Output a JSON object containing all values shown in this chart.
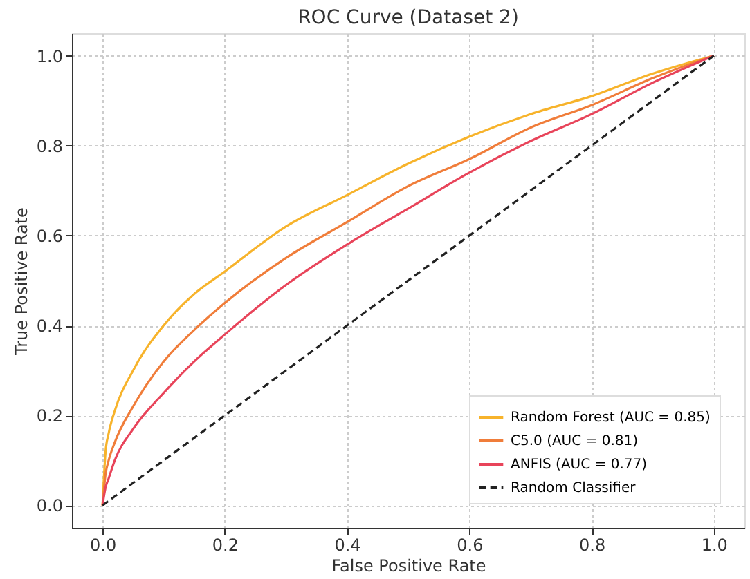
{
  "chart_data": {
    "type": "line",
    "title": "ROC Curve (Dataset 2)",
    "xlabel": "False Positive Rate",
    "ylabel": "True Positive Rate",
    "x": [
      0,
      0.005,
      0.01,
      0.02,
      0.05,
      0.1,
      0.15,
      0.2,
      0.3,
      0.4,
      0.5,
      0.6,
      0.7,
      0.8,
      0.9,
      1
    ],
    "series": [
      {
        "name": "Random Forest (AUC = 0.85)",
        "color": "#f7b32b",
        "line_style": "solid",
        "values": [
          0,
          0.12,
          0.16,
          0.21,
          0.3,
          0.4,
          0.47,
          0.52,
          0.62,
          0.69,
          0.76,
          0.82,
          0.87,
          0.91,
          0.96,
          1
        ]
      },
      {
        "name": "C5.0 (AUC = 0.81)",
        "color": "#f07d3a",
        "line_style": "solid",
        "values": [
          0,
          0.07,
          0.1,
          0.14,
          0.22,
          0.32,
          0.39,
          0.45,
          0.55,
          0.63,
          0.71,
          0.77,
          0.84,
          0.89,
          0.95,
          1
        ]
      },
      {
        "name": "ANFIS (AUC = 0.77)",
        "color": "#e8445a",
        "line_style": "solid",
        "values": [
          0,
          0.04,
          0.06,
          0.1,
          0.17,
          0.25,
          0.32,
          0.38,
          0.49,
          0.58,
          0.66,
          0.74,
          0.81,
          0.87,
          0.94,
          1
        ]
      },
      {
        "name": "Random Classifier",
        "color": "#222222",
        "line_style": "dashed",
        "x": [
          0,
          1
        ],
        "values": [
          0,
          1
        ]
      }
    ],
    "xlim": [
      -0.05,
      1.05
    ],
    "ylim": [
      -0.05,
      1.05
    ],
    "xticks": [
      {
        "value": 0,
        "label": "0.0"
      },
      0.2,
      0.4,
      0.6,
      0.8,
      {
        "value": 1,
        "label": "1.0"
      }
    ],
    "yticks": [
      {
        "value": 0,
        "label": "0.0"
      },
      0.2,
      0.4,
      0.6,
      0.8,
      {
        "value": 1,
        "label": "1.0"
      }
    ],
    "grid": true,
    "legend": "bottom right"
  }
}
